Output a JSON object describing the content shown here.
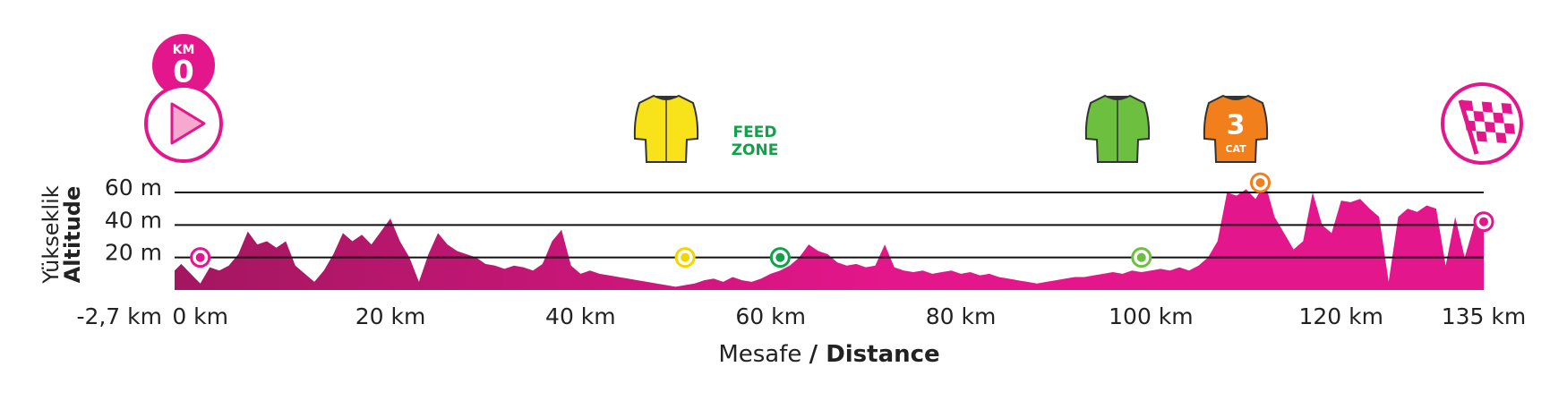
{
  "chart_data": {
    "type": "area",
    "ylabel": "Yükseklik",
    "ylabel_en": "Altitude",
    "xlabel": "Mesafe",
    "xlabel_en": "/ Distance",
    "x": [
      -2.7,
      -2,
      -1,
      0,
      1,
      2,
      3,
      4,
      5,
      6,
      7,
      8,
      9,
      10,
      11,
      12,
      13,
      14,
      15,
      16,
      17,
      18,
      19,
      20,
      21,
      22,
      23,
      24,
      25,
      26,
      27,
      28,
      29,
      30,
      31,
      32,
      33,
      34,
      35,
      36,
      37,
      38,
      39,
      40,
      41,
      42,
      43,
      44,
      45,
      46,
      47,
      48,
      49,
      50,
      51,
      52,
      53,
      54,
      55,
      56,
      57,
      58,
      59,
      60,
      61,
      62,
      63,
      64,
      65,
      66,
      67,
      68,
      69,
      70,
      71,
      72,
      73,
      74,
      75,
      76,
      77,
      78,
      79,
      80,
      81,
      82,
      83,
      84,
      85,
      86,
      87,
      88,
      89,
      90,
      91,
      92,
      93,
      94,
      95,
      96,
      97,
      98,
      99,
      100,
      101,
      102,
      103,
      104,
      105,
      106,
      107,
      108,
      109,
      110,
      111,
      112,
      113,
      114,
      115,
      116,
      117,
      118,
      119,
      120,
      121,
      122,
      123,
      124,
      125,
      126,
      127,
      128,
      129,
      130,
      131,
      132,
      133,
      134,
      135
    ],
    "values": [
      12,
      16,
      10,
      4,
      14,
      12,
      15,
      22,
      36,
      28,
      30,
      26,
      30,
      15,
      10,
      5,
      12,
      22,
      35,
      30,
      34,
      28,
      36,
      44,
      30,
      20,
      5,
      22,
      35,
      28,
      24,
      22,
      20,
      16,
      15,
      13,
      15,
      14,
      12,
      16,
      30,
      37,
      15,
      10,
      12,
      10,
      9,
      8,
      7,
      6,
      5,
      4,
      3,
      2,
      3,
      4,
      6,
      7,
      5,
      8,
      6,
      5,
      7,
      10,
      12,
      15,
      20,
      28,
      24,
      22,
      17,
      15,
      16,
      14,
      15,
      28,
      14,
      12,
      11,
      12,
      10,
      11,
      12,
      10,
      11,
      9,
      10,
      8,
      7,
      6,
      5,
      4,
      5,
      6,
      7,
      8,
      8,
      9,
      10,
      11,
      10,
      12,
      11,
      12,
      13,
      12,
      14,
      12,
      15,
      20,
      30,
      60,
      58,
      62,
      56,
      66,
      45,
      35,
      25,
      30,
      60,
      40,
      35,
      55,
      54,
      56,
      50,
      45,
      5,
      45,
      50,
      48,
      52,
      50,
      15,
      45,
      20,
      40,
      40
    ],
    "color": "#e4168b",
    "gradient_from": "#a3175f",
    "xlim": [
      -2.7,
      135
    ],
    "xticks": [
      {
        "value": -2.7,
        "label": "-2,7 km"
      },
      {
        "value": 0,
        "label": "0 km"
      },
      {
        "value": 20,
        "label": "20 km"
      },
      {
        "value": 40,
        "label": "40 km"
      },
      {
        "value": 60,
        "label": "60 km"
      },
      {
        "value": 80,
        "label": "80 km"
      },
      {
        "value": 100,
        "label": "100 km"
      },
      {
        "value": 120,
        "label": "120 km"
      },
      {
        "value": 135,
        "label": "135 km"
      }
    ],
    "ylim": [
      0,
      60
    ],
    "yticks": [
      {
        "value": 20,
        "label": "20 m"
      },
      {
        "value": 40,
        "label": "40 m"
      },
      {
        "value": 60,
        "label": "60 m"
      }
    ],
    "grid": true,
    "markers": [
      {
        "x": 0,
        "y": 20,
        "color": "#e4168b"
      },
      {
        "x": 51,
        "y": 20,
        "color": "#f2d600"
      },
      {
        "x": 61,
        "y": 20,
        "color": "#11a14a"
      },
      {
        "x": 99,
        "y": 20,
        "color": "#6cbf3f"
      },
      {
        "x": 111.5,
        "y": 66,
        "color": "#f07f1c"
      },
      {
        "x": 135,
        "y": 42,
        "color": "#e4168b"
      }
    ],
    "start_badge": {
      "top": "KM",
      "number": "0"
    },
    "feed_zone": [
      "FEED",
      "ZONE"
    ],
    "climb": {
      "category": "3",
      "label": "CAT"
    }
  }
}
